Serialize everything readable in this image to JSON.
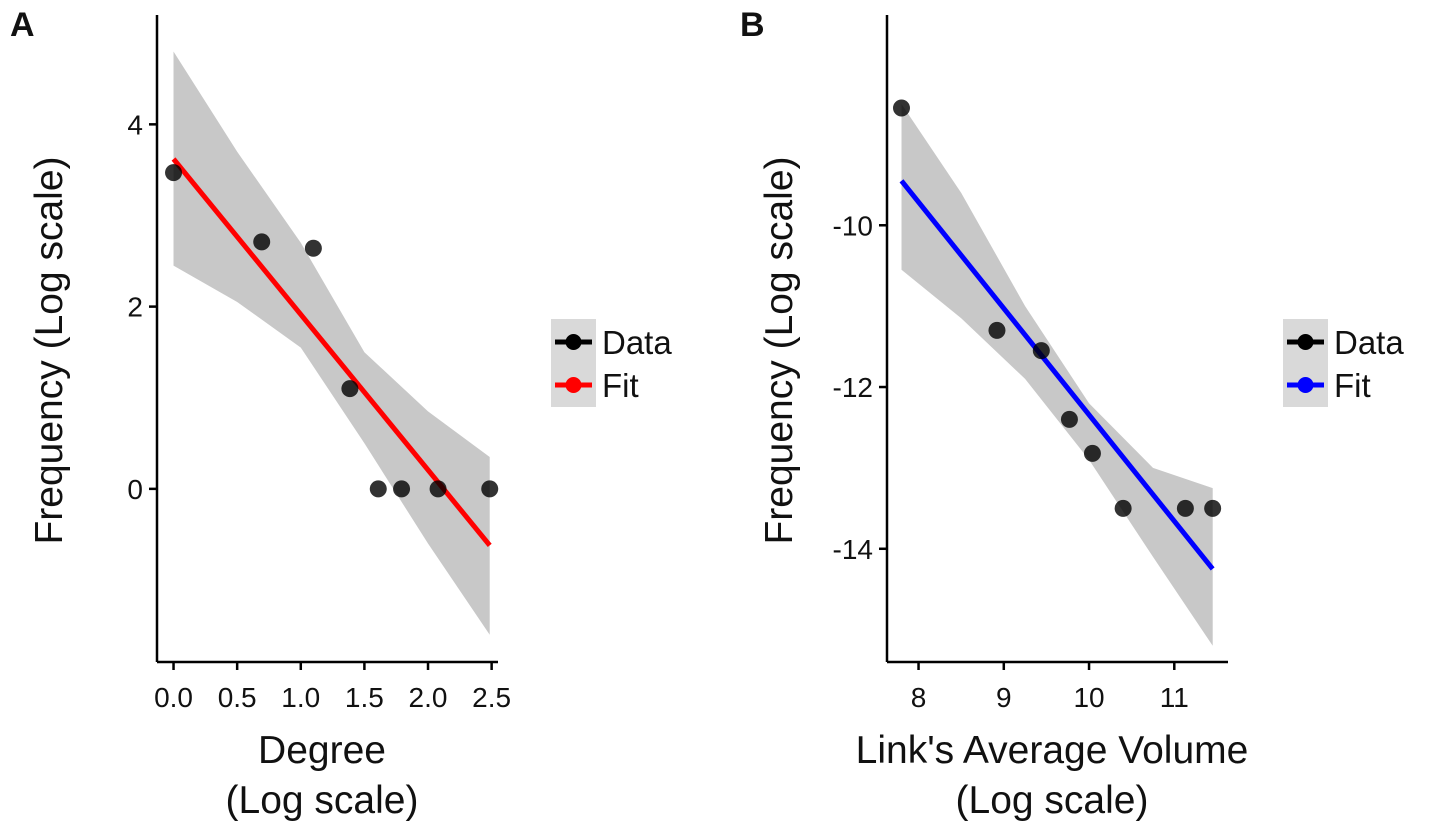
{
  "chart_data": [
    {
      "type": "scatter",
      "panel_label": "A",
      "xlabel_lines": [
        "Degree",
        "(Log scale)"
      ],
      "ylabel": "Frequency  (Log scale)",
      "xlim": [
        -0.13,
        2.55
      ],
      "ylim": [
        -1.9,
        5.2
      ],
      "x_ticks": [
        0.0,
        0.5,
        1.0,
        1.5,
        2.0,
        2.5
      ],
      "x_tick_labels": [
        "0.0",
        "0.5",
        "1.0",
        "1.5",
        "2.0",
        "2.5"
      ],
      "y_ticks": [
        0,
        2,
        4
      ],
      "y_tick_labels": [
        "0",
        "2",
        "4"
      ],
      "fit_color": "#ff0000",
      "series": [
        {
          "name": "Data",
          "x": [
            0.0,
            0.693,
            1.099,
            1.386,
            1.609,
            1.792,
            2.079,
            2.485
          ],
          "y": [
            3.47,
            2.71,
            2.64,
            1.1,
            0.0,
            0.0,
            0.0,
            0.0
          ]
        },
        {
          "name": "Fit",
          "x": [
            0.0,
            2.485
          ],
          "y": [
            3.62,
            -0.62
          ]
        }
      ],
      "confidence_band": {
        "x": [
          0.0,
          0.5,
          1.0,
          1.5,
          2.0,
          2.485
        ],
        "upper": [
          4.8,
          3.7,
          2.7,
          1.5,
          0.85,
          0.35
        ],
        "lower": [
          2.45,
          2.05,
          1.55,
          0.5,
          -0.6,
          -1.6
        ]
      },
      "grid": false,
      "legend_position": "right"
    },
    {
      "type": "scatter",
      "panel_label": "B",
      "xlabel_lines": [
        "Link's Average Volume",
        "(Log scale)"
      ],
      "ylabel": "Frequency  (Log scale)",
      "xlim": [
        7.63,
        11.63
      ],
      "ylim": [
        -15.4,
        -7.4
      ],
      "x_ticks": [
        8,
        9,
        10,
        11
      ],
      "x_tick_labels": [
        "8",
        "9",
        "10",
        "11"
      ],
      "y_ticks": [
        -10,
        -12,
        -14
      ],
      "y_tick_labels": [
        "-10",
        "-12",
        "-14"
      ],
      "fit_color": "#0000ff",
      "series": [
        {
          "name": "Data",
          "x": [
            7.8,
            8.92,
            9.44,
            9.77,
            10.04,
            10.4,
            11.13,
            11.45
          ],
          "y": [
            -8.55,
            -11.3,
            -11.55,
            -12.4,
            -12.82,
            -13.5,
            -13.5,
            -13.5
          ]
        },
        {
          "name": "Fit",
          "x": [
            7.8,
            11.45
          ],
          "y": [
            -9.45,
            -14.25
          ]
        }
      ],
      "confidence_band": {
        "x": [
          7.8,
          8.5,
          9.25,
          10.0,
          10.75,
          11.45
        ],
        "upper": [
          -8.5,
          -9.6,
          -11.0,
          -12.2,
          -13.0,
          -13.25
        ],
        "lower": [
          -10.55,
          -11.15,
          -11.9,
          -12.9,
          -14.1,
          -15.2
        ]
      },
      "grid": false,
      "legend_position": "right"
    }
  ]
}
